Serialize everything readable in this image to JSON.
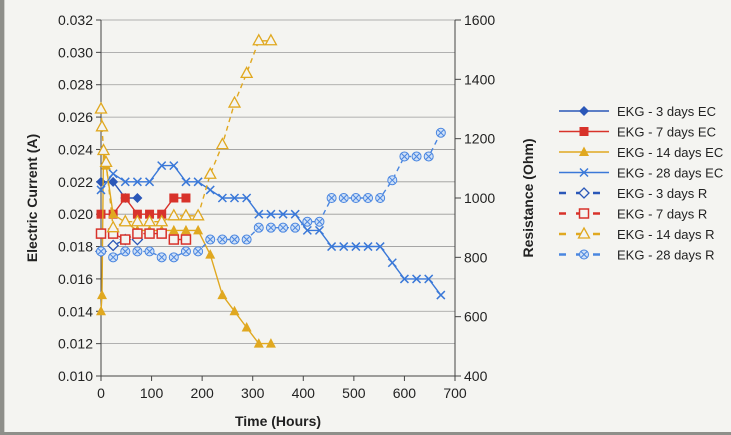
{
  "chart_data": {
    "type": "line",
    "xlabel": "Time (Hours)",
    "ylabel": "Electric Current (A)",
    "y2label": "Resistance (Ohm)",
    "xlim": [
      0,
      700
    ],
    "ylim": [
      0.01,
      0.032
    ],
    "y2lim": [
      400,
      1600
    ],
    "x_ticks": [
      "0",
      "100",
      "200",
      "300",
      "400",
      "500",
      "600",
      "700"
    ],
    "y_ticks": [
      "0.010",
      "0.012",
      "0.014",
      "0.016",
      "0.018",
      "0.020",
      "0.022",
      "0.024",
      "0.026",
      "0.028",
      "0.030",
      "0.032"
    ],
    "y2_ticks": [
      "400",
      "600",
      "800",
      "1000",
      "1200",
      "1400",
      "1600"
    ],
    "grid": "horizontal",
    "legend_position": "right",
    "series": [
      {
        "name": "EKG - 3 days EC",
        "axis": "left",
        "color": "#2a57b8",
        "marker": "diamond",
        "dashed": false,
        "points": [
          [
            0,
            0.022
          ],
          [
            24,
            0.022
          ],
          [
            48,
            0.021
          ],
          [
            72,
            0.021
          ]
        ]
      },
      {
        "name": "EKG - 7 days EC",
        "axis": "left",
        "color": "#d8322a",
        "marker": "square",
        "dashed": false,
        "points": [
          [
            0,
            0.02
          ],
          [
            24,
            0.02
          ],
          [
            48,
            0.021
          ],
          [
            72,
            0.02
          ],
          [
            96,
            0.02
          ],
          [
            120,
            0.02
          ],
          [
            144,
            0.021
          ],
          [
            168,
            0.021
          ]
        ]
      },
      {
        "name": "EKG - 14 days EC",
        "axis": "left",
        "color": "#e0a820",
        "marker": "triangle",
        "dashed": false,
        "points": [
          [
            0,
            0.014
          ],
          [
            2,
            0.015
          ],
          [
            5,
            0.024
          ],
          [
            10,
            0.023
          ],
          [
            24,
            0.02
          ],
          [
            48,
            0.0195
          ],
          [
            72,
            0.019
          ],
          [
            96,
            0.019
          ],
          [
            120,
            0.019
          ],
          [
            144,
            0.019
          ],
          [
            168,
            0.019
          ],
          [
            192,
            0.019
          ],
          [
            216,
            0.0175
          ],
          [
            240,
            0.015
          ],
          [
            264,
            0.014
          ],
          [
            288,
            0.013
          ],
          [
            312,
            0.012
          ],
          [
            336,
            0.012
          ]
        ]
      },
      {
        "name": "EKG - 28 days EC",
        "axis": "left",
        "color": "#3a78d8",
        "marker": "x",
        "dashed": false,
        "points": [
          [
            0,
            0.0215
          ],
          [
            24,
            0.0225
          ],
          [
            48,
            0.022
          ],
          [
            72,
            0.022
          ],
          [
            96,
            0.022
          ],
          [
            120,
            0.023
          ],
          [
            144,
            0.023
          ],
          [
            168,
            0.022
          ],
          [
            192,
            0.022
          ],
          [
            216,
            0.0215
          ],
          [
            240,
            0.021
          ],
          [
            264,
            0.021
          ],
          [
            288,
            0.021
          ],
          [
            312,
            0.02
          ],
          [
            336,
            0.02
          ],
          [
            360,
            0.02
          ],
          [
            384,
            0.02
          ],
          [
            408,
            0.019
          ],
          [
            432,
            0.019
          ],
          [
            456,
            0.018
          ],
          [
            480,
            0.018
          ],
          [
            504,
            0.018
          ],
          [
            528,
            0.018
          ],
          [
            552,
            0.018
          ],
          [
            576,
            0.017
          ],
          [
            600,
            0.016
          ],
          [
            624,
            0.016
          ],
          [
            648,
            0.016
          ],
          [
            672,
            0.015
          ]
        ]
      },
      {
        "name": "EKG - 3 days R",
        "axis": "right",
        "color": "#2a57b8",
        "marker": "open-diamond",
        "dashed": true,
        "points": [
          [
            0,
            820
          ],
          [
            24,
            840
          ],
          [
            48,
            860
          ],
          [
            72,
            860
          ]
        ]
      },
      {
        "name": "EKG - 7 days R",
        "axis": "right",
        "color": "#d8322a",
        "marker": "open-square",
        "dashed": true,
        "points": [
          [
            0,
            880
          ],
          [
            24,
            880
          ],
          [
            48,
            860
          ],
          [
            72,
            880
          ],
          [
            96,
            880
          ],
          [
            120,
            880
          ],
          [
            144,
            860
          ],
          [
            168,
            860
          ]
        ]
      },
      {
        "name": "EKG - 14 days R",
        "axis": "right",
        "color": "#e0a820",
        "marker": "open-triangle",
        "dashed": true,
        "points": [
          [
            0,
            1300
          ],
          [
            2,
            1240
          ],
          [
            5,
            1160
          ],
          [
            10,
            1120
          ],
          [
            24,
            900
          ],
          [
            48,
            920
          ],
          [
            72,
            920
          ],
          [
            96,
            920
          ],
          [
            120,
            920
          ],
          [
            144,
            940
          ],
          [
            168,
            940
          ],
          [
            192,
            940
          ],
          [
            216,
            1080
          ],
          [
            240,
            1180
          ],
          [
            264,
            1320
          ],
          [
            288,
            1420
          ],
          [
            312,
            1530
          ],
          [
            336,
            1530
          ]
        ]
      },
      {
        "name": "EKG - 28 days R",
        "axis": "right",
        "color": "#4a86e0",
        "marker": "open-circle-x",
        "dashed": true,
        "points": [
          [
            0,
            820
          ],
          [
            24,
            800
          ],
          [
            48,
            820
          ],
          [
            72,
            820
          ],
          [
            96,
            820
          ],
          [
            120,
            800
          ],
          [
            144,
            800
          ],
          [
            168,
            820
          ],
          [
            192,
            820
          ],
          [
            216,
            860
          ],
          [
            240,
            860
          ],
          [
            264,
            860
          ],
          [
            288,
            860
          ],
          [
            312,
            900
          ],
          [
            336,
            900
          ],
          [
            360,
            900
          ],
          [
            384,
            900
          ],
          [
            408,
            920
          ],
          [
            432,
            920
          ],
          [
            456,
            1000
          ],
          [
            480,
            1000
          ],
          [
            504,
            1000
          ],
          [
            528,
            1000
          ],
          [
            552,
            1000
          ],
          [
            576,
            1060
          ],
          [
            600,
            1140
          ],
          [
            624,
            1140
          ],
          [
            648,
            1140
          ],
          [
            672,
            1220
          ]
        ]
      }
    ]
  }
}
